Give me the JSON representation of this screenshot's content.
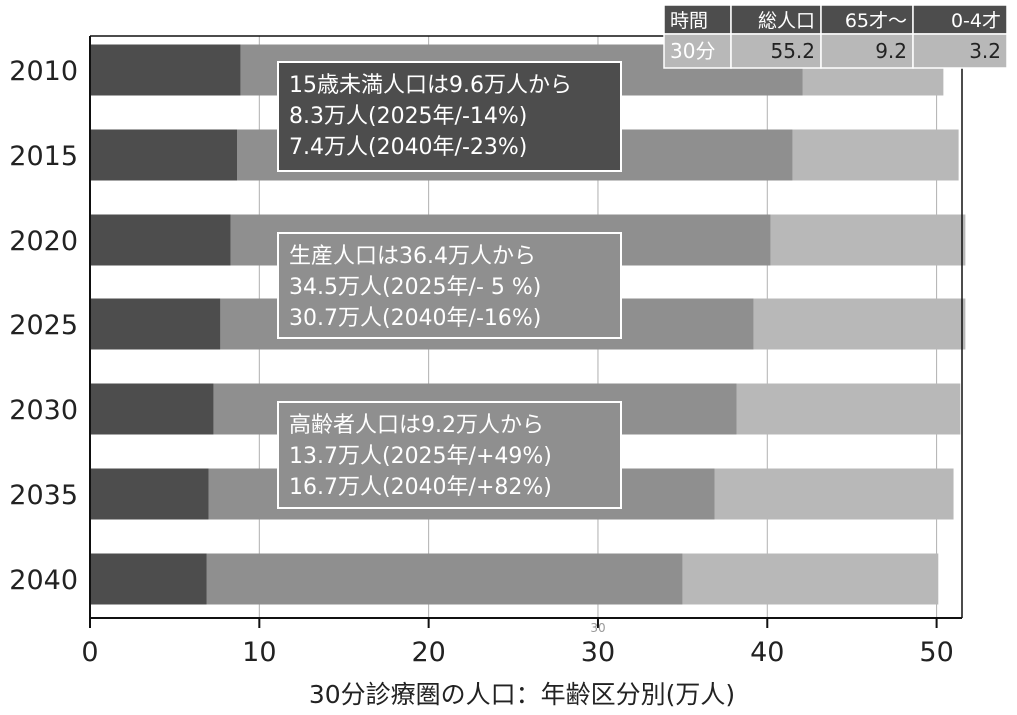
{
  "chart_data": {
    "type": "bar",
    "orientation": "horizontal",
    "stacked": true,
    "categories": [
      "2010",
      "2015",
      "2020",
      "2025",
      "2030",
      "2035",
      "2040"
    ],
    "series": [
      {
        "name": "",
        "values": [
          8.9,
          8.7,
          8.3,
          7.7,
          7.3,
          7.0,
          6.9
        ],
        "color": "#4d4d4d"
      },
      {
        "name": "",
        "values": [
          33.2,
          32.8,
          31.9,
          31.5,
          30.9,
          29.9,
          28.1
        ],
        "color": "#8f8f8f"
      },
      {
        "name": "",
        "values": [
          8.3,
          9.8,
          11.5,
          12.5,
          13.2,
          14.1,
          15.1
        ],
        "color": "#b8b8b8"
      }
    ],
    "xlabel": "30分診療圏の人口：年齢区分別(万人)",
    "ylabel": "",
    "xlim": [
      0,
      51.5
    ],
    "xticks": [
      0,
      10,
      20,
      30,
      40,
      50
    ],
    "grid": true,
    "legend": "none",
    "annotations": [
      {
        "lines": [
          "15歳未満人口は9.6万人から",
          "8.3万人(2025年/-14%)",
          "7.4万人(2040年/-23%)"
        ],
        "color": "#4d4d4d"
      },
      {
        "lines": [
          "生産人口は36.4万人から",
          "34.5万人(2025年/- 5 %)",
          "30.7万人(2040年/-16%)"
        ],
        "color": "#8f8f8f"
      },
      {
        "lines": [
          "高齢者人口は9.2万人から",
          "13.7万人(2025年/+49%)",
          "16.7万人(2040年/+82%)"
        ],
        "color": "#8f8f8f"
      }
    ],
    "small_mark": "30",
    "summary_table": {
      "headers": [
        "時間",
        "総人口",
        "65才～",
        "0-4才"
      ],
      "row": [
        "30分",
        "55.2",
        "9.2",
        "3.2"
      ],
      "header_color": "#4d4d4d",
      "row_color": "#b8b8b8"
    }
  }
}
